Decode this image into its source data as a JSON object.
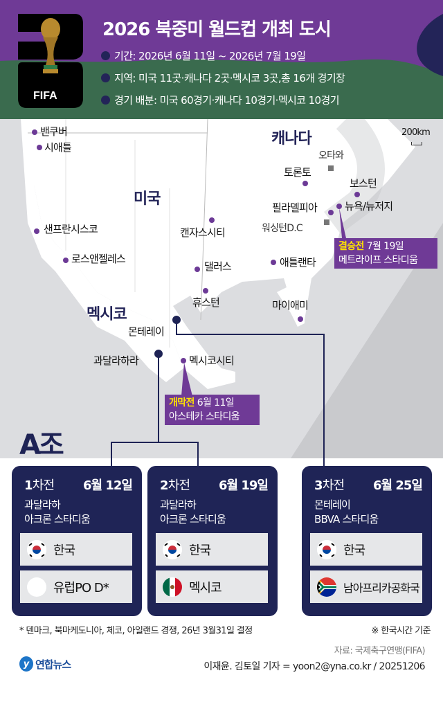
{
  "header": {
    "logo_text": "FIFA",
    "logo_number": "26",
    "title": "2026 북중미 월드컵 개최 도시",
    "bullets": [
      "기간: 2026년 6월 11일 ~ 2026년 7월 19일",
      "지역: 미국 11곳·캐나다 2곳·멕시코 3곳,총 16개 경기장",
      "경기 배분: 미국 60경기·캐나다  10경기·멕시코 10경기"
    ],
    "colors": {
      "purple": "#6f3a96",
      "green": "#3a6b4e",
      "navy": "#232458"
    }
  },
  "map": {
    "countries": {
      "canada": "캐나다",
      "usa": "미국",
      "mexico": "멕시코"
    },
    "scale": "200km",
    "capitals": {
      "ottawa": "오타와",
      "washington": "워싱턴D.C"
    },
    "cities": {
      "vancouver": "밴쿠버",
      "seattle": "시애틀",
      "toronto": "토론토",
      "boston": "보스턴",
      "philadelphia": "필라델피아",
      "newyork": "뉴욕/뉴저지",
      "sanfrancisco": "샌프란시스코",
      "kansascity": "캔자스시티",
      "losangeles": "로스앤젤레스",
      "dallas": "댈러스",
      "atlanta": "애틀랜타",
      "houston": "휴스턴",
      "miami": "마이애미",
      "monterrey": "몬테레이",
      "guadalajara": "과달라하라",
      "mexicocity": "멕시코시티"
    },
    "final": {
      "label": "결승전",
      "date": "7월 19일",
      "venue": "메트라이프 스타디움"
    },
    "opening": {
      "label": "개막전",
      "date": "6월 11일",
      "venue": "아스테카 스타디움"
    }
  },
  "group": {
    "title": "A조",
    "matches": [
      {
        "num": "1",
        "suffix": "차전",
        "date": "6월 12일",
        "city": "과달라하",
        "stadium": "아크론 스타디움",
        "teams": [
          "한국",
          "유럽PO D*"
        ]
      },
      {
        "num": "2",
        "suffix": "차전",
        "date": "6월 19일",
        "city": "과달라하",
        "stadium": "아크론 스타디움",
        "teams": [
          "한국",
          "멕시코"
        ]
      },
      {
        "num": "3",
        "suffix": "차전",
        "date": "6월 25일",
        "city": "몬테레이",
        "stadium": "BBVA 스타디움",
        "teams": [
          "한국",
          "남아프리카공화국"
        ]
      }
    ]
  },
  "footer": {
    "note": "* 덴마크, 북마케도니아, 체코, 아일랜드 경쟁, 26년 3월31일 결정",
    "timezone": "※ 한국시간 기준",
    "source": "자료: 국제축구연맹(FIFA)",
    "logo": "연합뉴스",
    "credit": "이재윤. 김토일 기자 = yoon2@yna.co.kr / 20251206"
  }
}
